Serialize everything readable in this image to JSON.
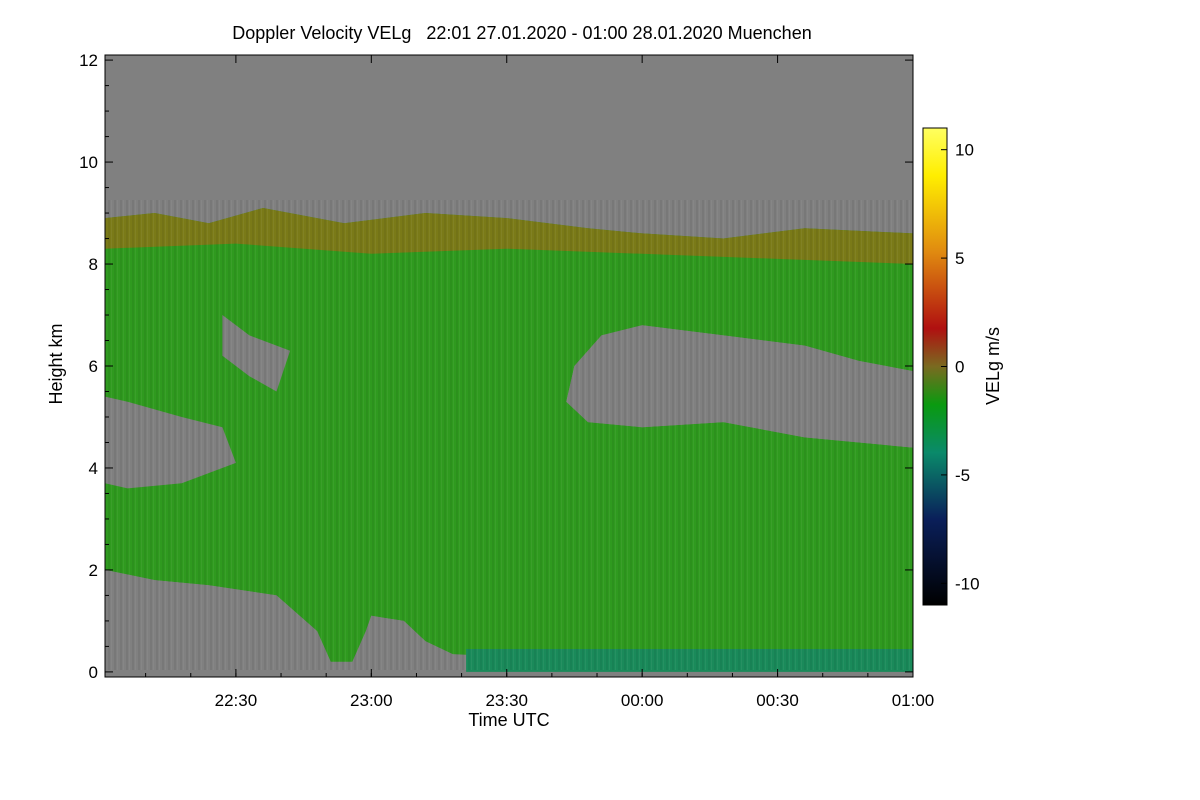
{
  "chart_data": {
    "type": "heatmap",
    "title": "Doppler Velocity VELg   22:01 27.01.2020 - 01:00 28.01.2020 Muenchen",
    "xlabel": "Time UTC",
    "ylabel": "Height km",
    "x_range_hours": [
      22.0167,
      25.0
    ],
    "x_ticks": [
      {
        "label": "22:30",
        "value": 22.5
      },
      {
        "label": "23:00",
        "value": 23.0
      },
      {
        "label": "23:30",
        "value": 23.5
      },
      {
        "label": "00:00",
        "value": 24.0
      },
      {
        "label": "00:30",
        "value": 24.5
      },
      {
        "label": "01:00",
        "value": 25.0
      }
    ],
    "y_range_km": [
      -0.1,
      12.1
    ],
    "y_ticks": [
      {
        "label": "0",
        "value": 0
      },
      {
        "label": "2",
        "value": 2
      },
      {
        "label": "4",
        "value": 4
      },
      {
        "label": "6",
        "value": 6
      },
      {
        "label": "8",
        "value": 8
      },
      {
        "label": "10",
        "value": 10
      },
      {
        "label": "12",
        "value": 12
      }
    ],
    "colorbar": {
      "label": "VELg m/s",
      "range": [
        -11,
        11
      ],
      "ticks": [
        {
          "label": "10",
          "value": 10
        },
        {
          "label": "5",
          "value": 5
        },
        {
          "label": "0",
          "value": 0
        },
        {
          "label": "-5",
          "value": -5
        },
        {
          "label": "-10",
          "value": -10
        }
      ],
      "colorscale": [
        "#000000",
        "#0a1f5a",
        "#0a8a6a",
        "#0a9a10",
        "#7a6a20",
        "#b01010",
        "#e08a10",
        "#ffee00",
        "#ffff60"
      ]
    },
    "background_no_signal_color": "#808080",
    "regions": [
      {
        "name": "main-cloud",
        "velocity": -1.5,
        "color": "#2f9a1f",
        "outline": [
          [
            22.0167,
            8.9
          ],
          [
            22.2,
            9.0
          ],
          [
            22.4,
            8.8
          ],
          [
            22.6,
            9.1
          ],
          [
            22.9,
            8.8
          ],
          [
            23.2,
            9.0
          ],
          [
            23.5,
            8.9
          ],
          [
            23.8,
            8.7
          ],
          [
            24.0,
            8.6
          ],
          [
            24.3,
            8.5
          ],
          [
            24.6,
            8.7
          ],
          [
            25.0,
            8.6
          ],
          [
            25.0,
            5.9
          ],
          [
            24.8,
            6.1
          ],
          [
            24.6,
            6.4
          ],
          [
            24.3,
            6.6
          ],
          [
            24.0,
            6.8
          ],
          [
            23.85,
            6.6
          ],
          [
            23.75,
            6.0
          ],
          [
            23.72,
            5.3
          ],
          [
            23.8,
            4.9
          ],
          [
            24.0,
            4.8
          ],
          [
            24.3,
            4.9
          ],
          [
            24.6,
            4.6
          ],
          [
            25.0,
            4.4
          ],
          [
            25.0,
            0.3
          ],
          [
            23.5,
            0.3
          ],
          [
            23.3,
            0.35
          ],
          [
            23.2,
            0.6
          ],
          [
            23.12,
            1.0
          ],
          [
            23.0,
            1.1
          ],
          [
            22.98,
            0.8
          ],
          [
            22.93,
            0.2
          ],
          [
            22.85,
            0.2
          ],
          [
            22.8,
            0.8
          ],
          [
            22.65,
            1.5
          ],
          [
            22.4,
            1.7
          ],
          [
            22.2,
            1.8
          ],
          [
            22.0167,
            2.0
          ]
        ]
      },
      {
        "name": "upper-cloud-band",
        "velocity": 0.5,
        "color": "#7a7a18",
        "outline": [
          [
            22.0167,
            8.9
          ],
          [
            22.2,
            9.0
          ],
          [
            22.4,
            8.8
          ],
          [
            22.6,
            9.1
          ],
          [
            22.9,
            8.8
          ],
          [
            23.2,
            9.0
          ],
          [
            23.5,
            8.9
          ],
          [
            23.8,
            8.7
          ],
          [
            24.0,
            8.6
          ],
          [
            24.3,
            8.5
          ],
          [
            24.6,
            8.7
          ],
          [
            25.0,
            8.6
          ],
          [
            25.0,
            8.0
          ],
          [
            24.5,
            8.1
          ],
          [
            24.0,
            8.2
          ],
          [
            23.5,
            8.3
          ],
          [
            23.0,
            8.2
          ],
          [
            22.5,
            8.4
          ],
          [
            22.0167,
            8.3
          ]
        ]
      },
      {
        "name": "surface-layer",
        "velocity": -3.5,
        "color": "#1a8a5a",
        "outline": [
          [
            23.35,
            0.45
          ],
          [
            25.0,
            0.45
          ],
          [
            25.0,
            0.0
          ],
          [
            23.35,
            0.0
          ]
        ]
      },
      {
        "name": "gap-left-mid",
        "velocity": null,
        "color": "#808080",
        "outline": [
          [
            22.0167,
            5.4
          ],
          [
            22.1,
            5.3
          ],
          [
            22.3,
            5.0
          ],
          [
            22.45,
            4.8
          ],
          [
            22.5,
            4.1
          ],
          [
            22.3,
            3.7
          ],
          [
            22.1,
            3.6
          ],
          [
            22.0167,
            3.7
          ]
        ]
      },
      {
        "name": "gap-hole",
        "velocity": null,
        "color": "#808080",
        "outline": [
          [
            22.45,
            7.0
          ],
          [
            22.55,
            6.6
          ],
          [
            22.7,
            6.3
          ],
          [
            22.65,
            5.5
          ],
          [
            22.55,
            5.8
          ],
          [
            22.45,
            6.2
          ]
        ]
      },
      {
        "name": "gap-right-mid",
        "velocity": null,
        "color": "#808080",
        "outline": [
          [
            23.75,
            6.0
          ],
          [
            23.85,
            6.6
          ],
          [
            24.0,
            6.8
          ],
          [
            24.3,
            6.6
          ],
          [
            24.6,
            6.4
          ],
          [
            24.8,
            6.1
          ],
          [
            25.0,
            5.9
          ],
          [
            25.0,
            4.4
          ],
          [
            24.6,
            4.6
          ],
          [
            24.3,
            4.9
          ],
          [
            24.0,
            4.8
          ],
          [
            23.8,
            4.9
          ],
          [
            23.72,
            5.3
          ]
        ]
      },
      {
        "name": "gap-lower-left",
        "velocity": null,
        "color": "#808080",
        "outline": [
          [
            22.0167,
            2.0
          ],
          [
            22.2,
            1.8
          ],
          [
            22.4,
            1.7
          ],
          [
            22.65,
            1.5
          ],
          [
            22.8,
            0.8
          ],
          [
            22.85,
            0.2
          ],
          [
            22.0167,
            0.2
          ]
        ]
      },
      {
        "name": "gap-lower-mid",
        "velocity": null,
        "color": "#808080",
        "outline": [
          [
            22.98,
            0.8
          ],
          [
            23.0,
            1.1
          ],
          [
            23.12,
            1.0
          ],
          [
            23.2,
            0.6
          ],
          [
            23.3,
            0.35
          ],
          [
            22.93,
            0.2
          ]
        ]
      }
    ]
  }
}
